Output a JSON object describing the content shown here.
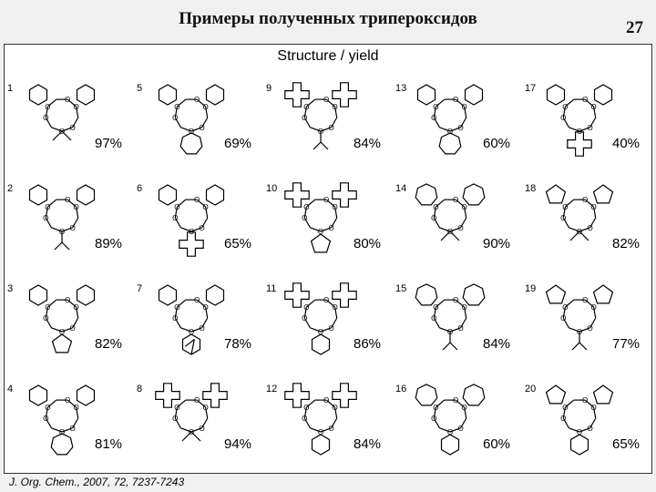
{
  "title": "Примеры полученных трипероксидов",
  "page_number": "27",
  "subtitle": "Structure / yield",
  "citation": "J. Org. Chem., 2007, 72, 7237-7243",
  "compounds": [
    {
      "num": "1",
      "yield": "97%",
      "outer": "cyclohexane",
      "bottom": "gem-dimethyl"
    },
    {
      "num": "2",
      "yield": "89%",
      "outer": "cyclohexane",
      "bottom": "isopropyl"
    },
    {
      "num": "3",
      "yield": "82%",
      "outer": "cyclohexane",
      "bottom": "cyclopentane"
    },
    {
      "num": "4",
      "yield": "81%",
      "outer": "cyclohexane",
      "bottom": "cycloheptane"
    },
    {
      "num": "5",
      "yield": "69%",
      "outer": "cyclohexane",
      "bottom": "cycloheptane"
    },
    {
      "num": "6",
      "yield": "65%",
      "outer": "cyclohexane",
      "bottom": "cyclododecane"
    },
    {
      "num": "7",
      "yield": "78%",
      "outer": "cyclohexane",
      "bottom": "adamantane"
    },
    {
      "num": "8",
      "yield": "94%",
      "outer": "cyclododecane",
      "bottom": "gem-dimethyl"
    },
    {
      "num": "9",
      "yield": "84%",
      "outer": "cyclododecane",
      "bottom": "isopropyl"
    },
    {
      "num": "10",
      "yield": "80%",
      "outer": "cyclododecane",
      "bottom": "cyclopentane"
    },
    {
      "num": "11",
      "yield": "86%",
      "outer": "cyclododecane",
      "bottom": "cyclohexane"
    },
    {
      "num": "12",
      "yield": "84%",
      "outer": "cyclododecane",
      "bottom": "cyclohexane"
    },
    {
      "num": "13",
      "yield": "60%",
      "outer": "cyclohexane",
      "bottom": "cycloheptane"
    },
    {
      "num": "14",
      "yield": "90%",
      "outer": "cycloheptane",
      "bottom": "gem-dimethyl"
    },
    {
      "num": "15",
      "yield": "84%",
      "outer": "cycloheptane",
      "bottom": "isopropyl"
    },
    {
      "num": "16",
      "yield": "60%",
      "outer": "cycloheptane",
      "bottom": "cyclohexane"
    },
    {
      "num": "17",
      "yield": "40%",
      "outer": "cyclohexane",
      "bottom": "cyclododecane"
    },
    {
      "num": "18",
      "yield": "82%",
      "outer": "cyclopentane",
      "bottom": "gem-dimethyl"
    },
    {
      "num": "19",
      "yield": "77%",
      "outer": "cyclopentane",
      "bottom": "isopropyl"
    },
    {
      "num": "20",
      "yield": "65%",
      "outer": "cyclopentane",
      "bottom": "cyclohexane"
    }
  ]
}
